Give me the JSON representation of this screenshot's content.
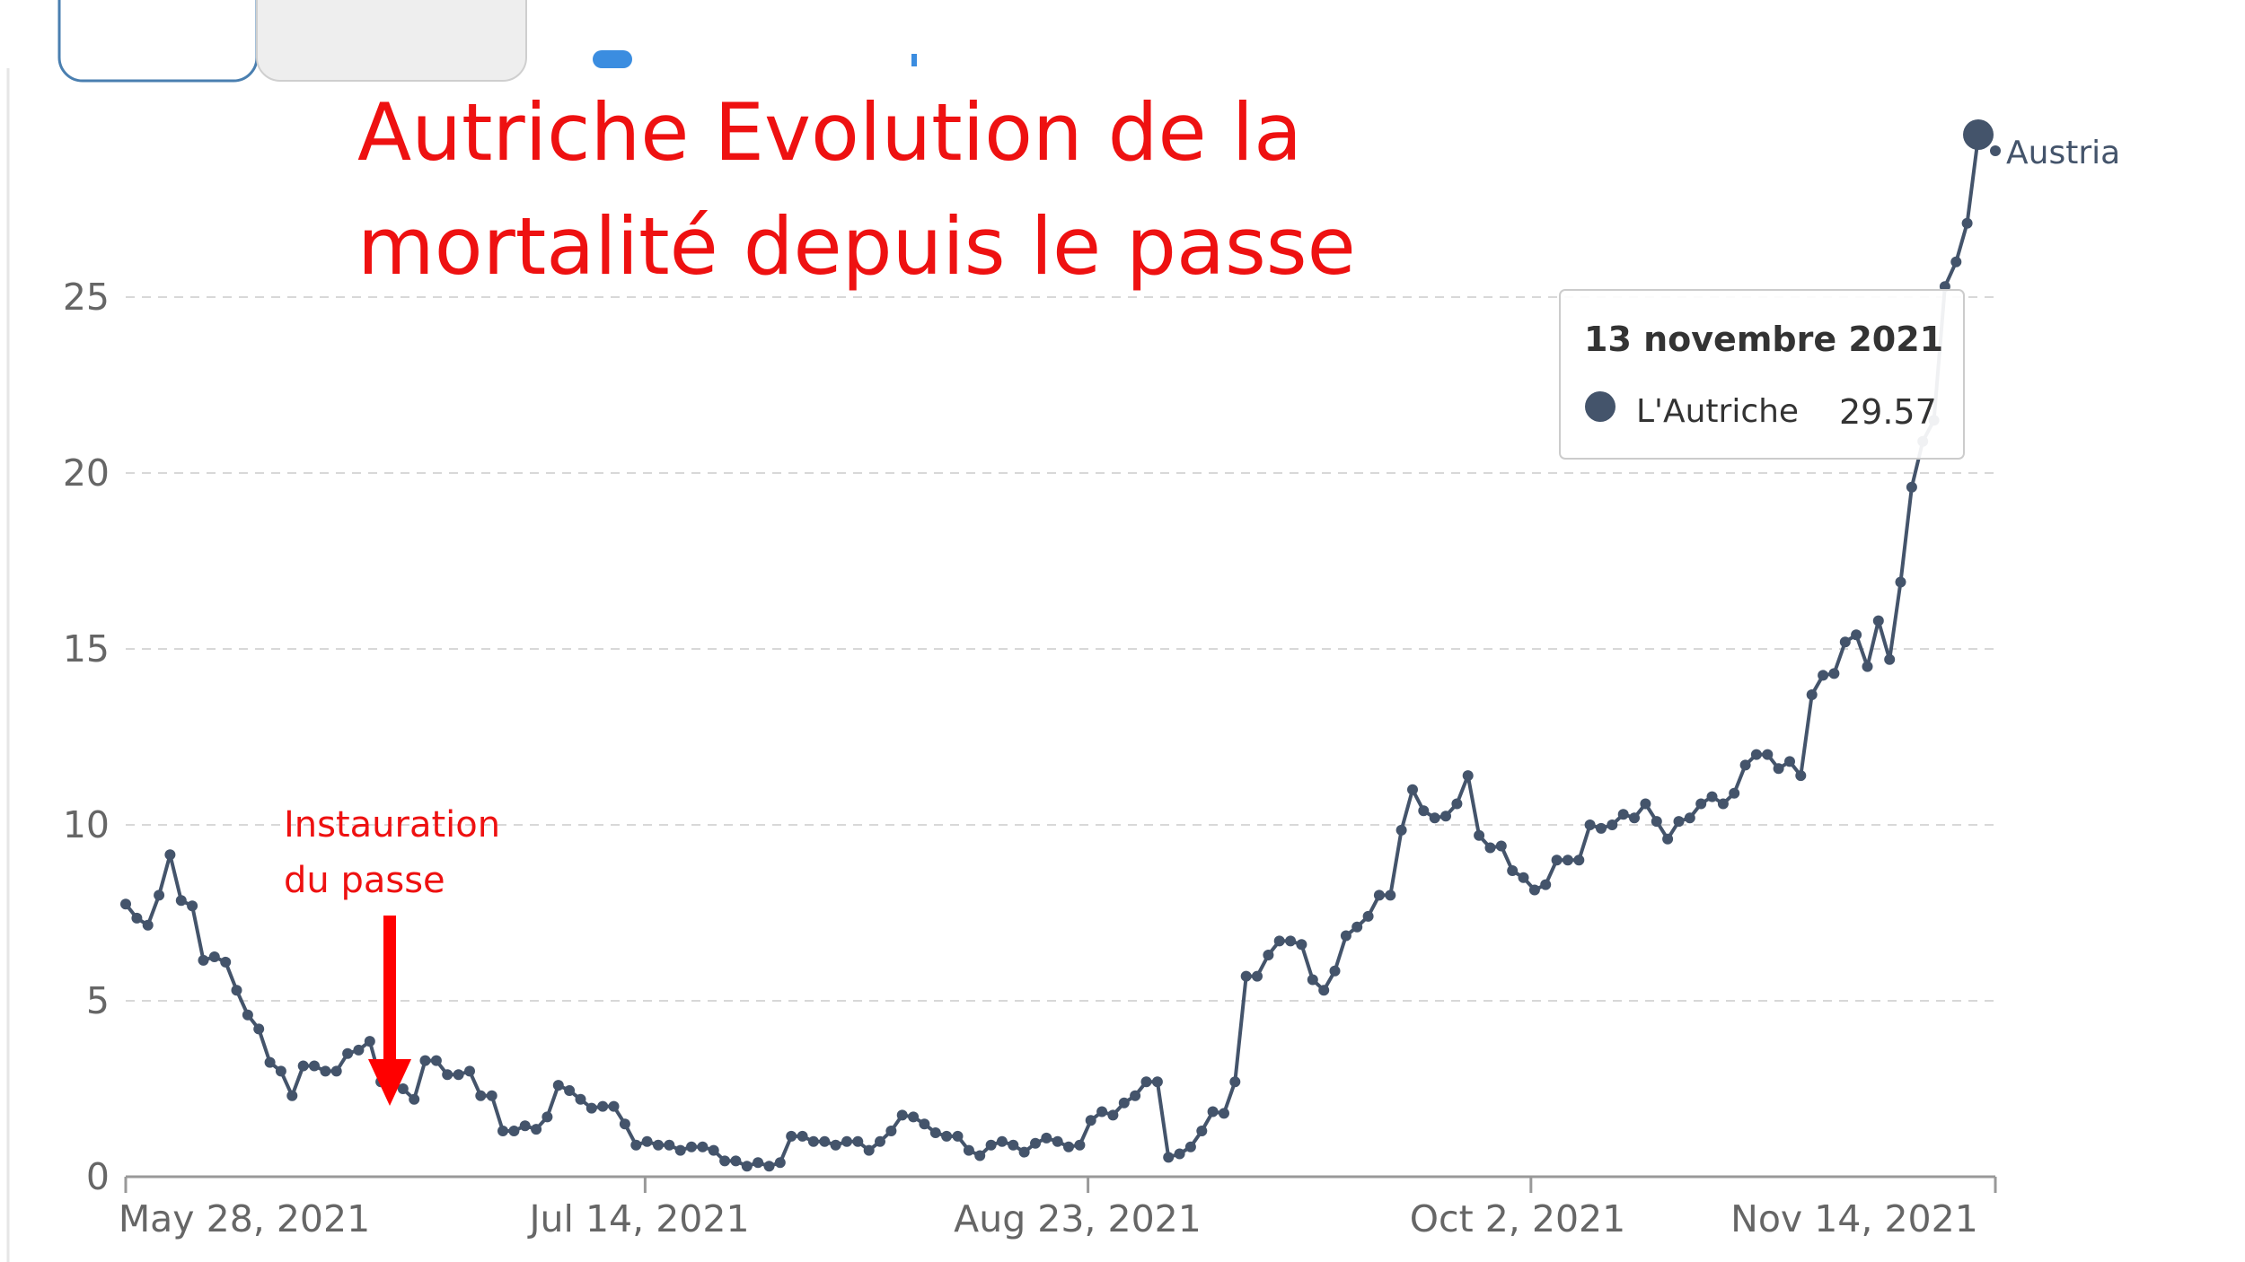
{
  "chart_data": {
    "type": "line",
    "title_lines": [
      "Autriche Evolution de la",
      "mortalité depuis le passe"
    ],
    "xlabel": "",
    "ylabel": "",
    "ylim": [
      0,
      30
    ],
    "y_ticks": [
      0,
      5,
      10,
      15,
      20,
      25
    ],
    "x_tick_labels": [
      "May 28, 2021",
      "Jul 14, 2021",
      "Aug 23, 2021",
      "Oct 2, 2021",
      "Nov 14, 2021"
    ],
    "grid": "horizontal dashed",
    "annotation": {
      "lines": [
        "Instauration",
        "du passe"
      ],
      "arrow_color": "#ff0000"
    },
    "series_end_label": "Austria",
    "tooltip": {
      "date": "13 novembre 2021",
      "series": "L'Autriche",
      "value": "29.57"
    },
    "series": [
      {
        "color": "#44546b",
        "values": [
          7.75,
          7.35,
          7.15,
          8.0,
          9.15,
          7.85,
          7.7,
          6.15,
          6.25,
          6.1,
          5.3,
          4.6,
          4.2,
          3.25,
          3.0,
          2.3,
          3.15,
          3.15,
          3.0,
          3.0,
          3.5,
          3.6,
          3.85,
          2.7,
          2.65,
          2.5,
          2.2,
          3.3,
          3.3,
          2.9,
          2.9,
          3.0,
          2.3,
          2.3,
          1.3,
          1.3,
          1.45,
          1.35,
          1.7,
          2.6,
          2.45,
          2.2,
          1.95,
          2.0,
          2.0,
          1.5,
          0.9,
          1.0,
          0.9,
          0.9,
          0.75,
          0.85,
          0.85,
          0.75,
          0.45,
          0.45,
          0.3,
          0.4,
          0.3,
          0.4,
          1.15,
          1.15,
          1.0,
          1.0,
          0.9,
          1.0,
          1.0,
          0.75,
          1.0,
          1.3,
          1.75,
          1.7,
          1.5,
          1.25,
          1.15,
          1.15,
          0.75,
          0.6,
          0.9,
          1.0,
          0.9,
          0.7,
          0.95,
          1.1,
          1.0,
          0.85,
          0.9,
          1.6,
          1.85,
          1.75,
          2.1,
          2.3,
          2.7,
          2.7,
          0.55,
          0.65,
          0.85,
          1.3,
          1.85,
          1.8,
          2.7,
          5.7,
          5.7,
          6.3,
          6.7,
          6.7,
          6.6,
          5.6,
          5.3,
          5.85,
          6.85,
          7.1,
          7.4,
          8.0,
          8.0,
          9.85,
          11.0,
          10.4,
          10.2,
          10.25,
          10.6,
          11.4,
          9.7,
          9.35,
          9.4,
          8.7,
          8.5,
          8.15,
          8.3,
          9.0,
          9.0,
          9.0,
          10.0,
          9.9,
          10.0,
          10.3,
          10.2,
          10.6,
          10.1,
          9.6,
          10.1,
          10.2,
          10.6,
          10.8,
          10.6,
          10.9,
          11.7,
          12.0,
          12.0,
          11.6,
          11.8,
          11.4,
          13.7,
          14.25,
          14.3,
          15.2,
          15.4,
          14.5,
          15.8,
          14.7,
          16.9,
          19.6,
          20.9,
          21.5,
          25.3,
          26.0,
          27.1,
          29.57
        ]
      }
    ]
  }
}
